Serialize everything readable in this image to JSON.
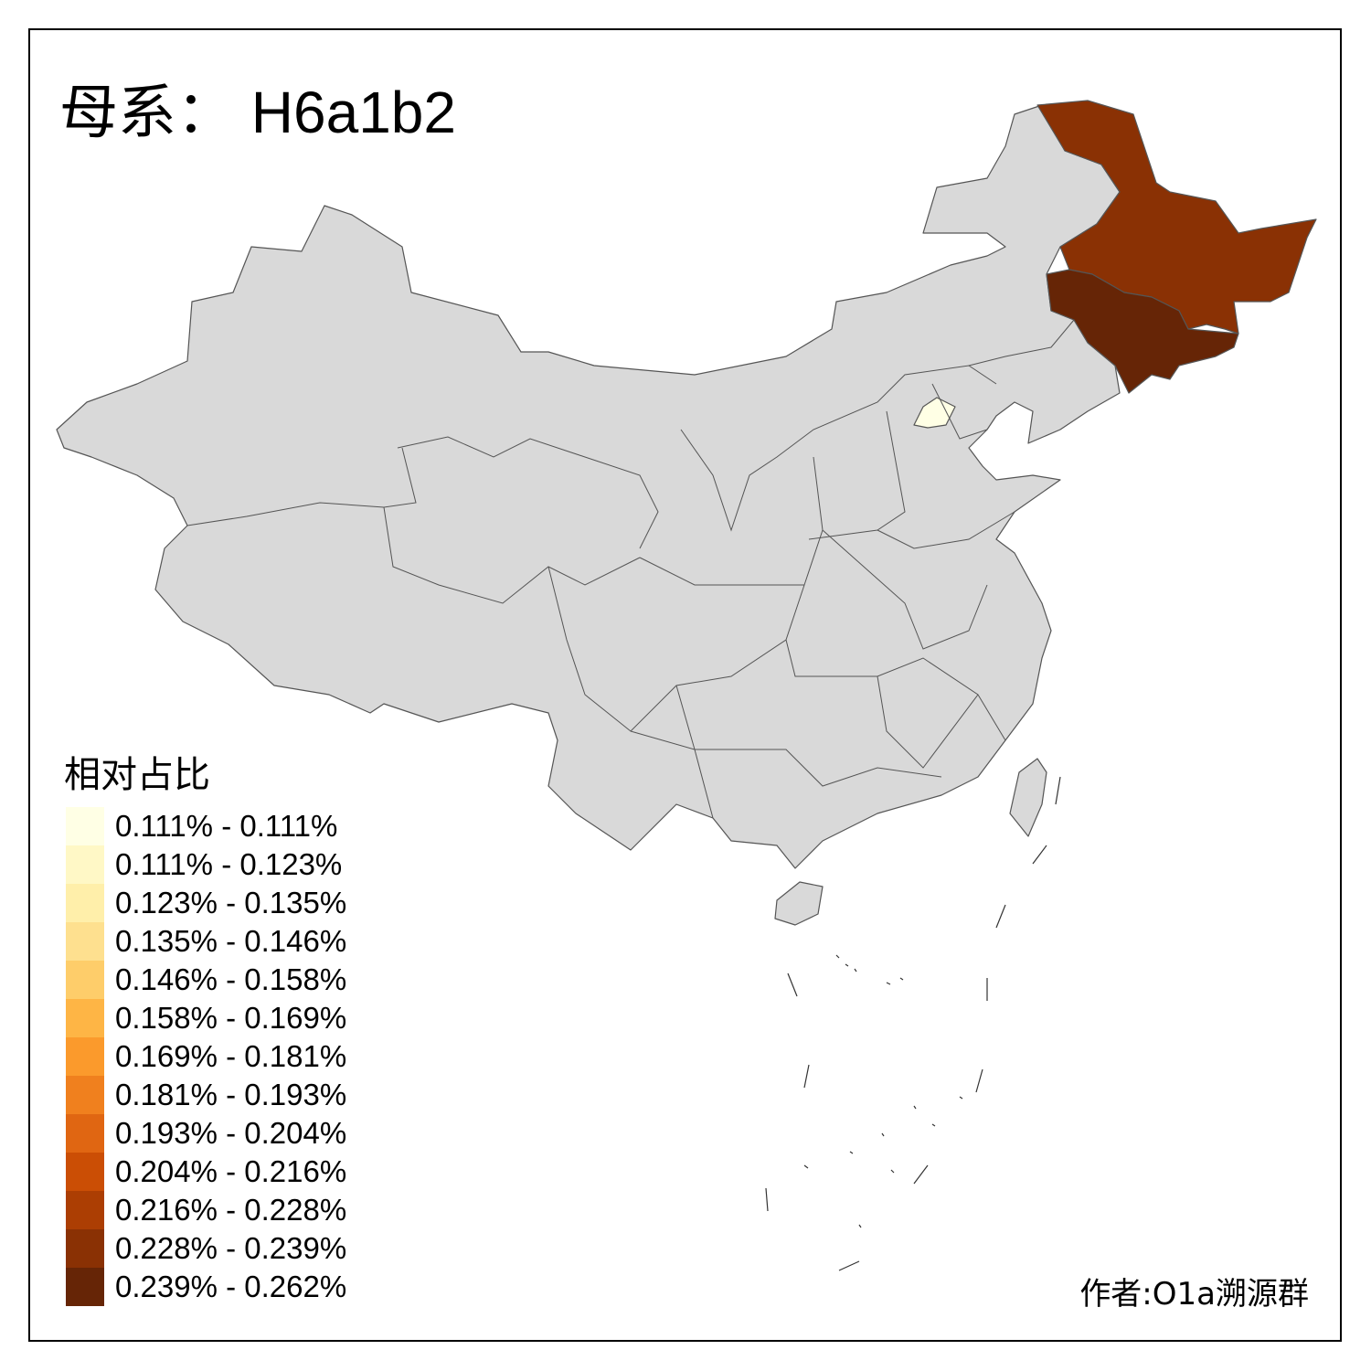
{
  "title": {
    "prefix": "母系：",
    "haplogroup": "H6a1b2"
  },
  "legend": {
    "title": "相对占比",
    "items": [
      {
        "label": "0.111% - 0.111%",
        "color": "#FFFFE5"
      },
      {
        "label": "0.111% - 0.123%",
        "color": "#FFF8C6"
      },
      {
        "label": "0.123% - 0.135%",
        "color": "#FFEFAA"
      },
      {
        "label": "0.135% - 0.146%",
        "color": "#FEE08F"
      },
      {
        "label": "0.146% - 0.158%",
        "color": "#FECD6A"
      },
      {
        "label": "0.158% - 0.169%",
        "color": "#FEB545"
      },
      {
        "label": "0.169% - 0.181%",
        "color": "#FB9A2C"
      },
      {
        "label": "0.181% - 0.193%",
        "color": "#F0801E"
      },
      {
        "label": "0.193% - 0.204%",
        "color": "#E06612"
      },
      {
        "label": "0.204% - 0.216%",
        "color": "#CB4E05"
      },
      {
        "label": "0.216% - 0.228%",
        "color": "#AC3E03"
      },
      {
        "label": "0.228% - 0.239%",
        "color": "#8A3104"
      },
      {
        "label": "0.239% - 0.262%",
        "color": "#662506"
      }
    ]
  },
  "regions": {
    "default_color": "#D9D9D9",
    "border_color": "#555555",
    "heilongjiang_color": "#8A3104",
    "jilin_color": "#662506",
    "beijing_color": "#FFFFE5"
  },
  "author": "作者:O1a溯源群"
}
